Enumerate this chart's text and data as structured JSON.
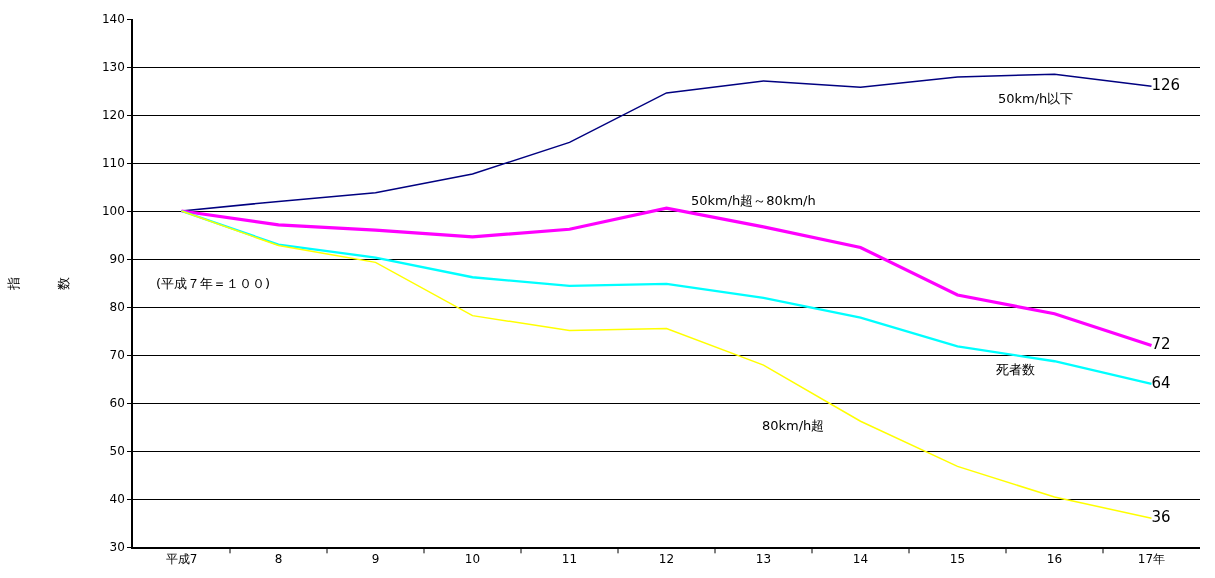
{
  "chart_data": {
    "type": "line",
    "ylabel": "指数",
    "categories": [
      "平成7",
      "8",
      "9",
      "10",
      "11",
      "12",
      "13",
      "14",
      "15",
      "16",
      "17年"
    ],
    "series": [
      {
        "name": "50km/h以下",
        "color": "#000080",
        "values": [
          100,
          102.0,
          103.8,
          107.7,
          114.3,
          124.6,
          127.1,
          125.8,
          127.9,
          128.5,
          126
        ],
        "value_labels": [
          null,
          null,
          null,
          null,
          null,
          null,
          null,
          null,
          null,
          null,
          "126"
        ]
      },
      {
        "name": "50km/h超～80km/h",
        "color": "#ff00ff",
        "values": [
          100,
          97.1,
          96.0,
          94.6,
          96.2,
          100.6,
          96.7,
          92.4,
          82.5,
          78.6,
          72
        ],
        "value_labels": [
          null,
          null,
          null,
          null,
          null,
          null,
          null,
          null,
          null,
          null,
          "72"
        ]
      },
      {
        "name": "死者数",
        "color": "#00ffff",
        "values": [
          100,
          93.0,
          90.3,
          86.2,
          84.4,
          84.8,
          81.9,
          77.8,
          71.8,
          68.7,
          64
        ],
        "value_labels": [
          null,
          null,
          null,
          null,
          null,
          null,
          null,
          null,
          null,
          null,
          "64"
        ]
      },
      {
        "name": "80km/h超",
        "color": "#ffff00",
        "values": [
          100,
          92.8,
          89.3,
          78.2,
          75.1,
          75.5,
          67.9,
          56.2,
          46.8,
          40.4,
          36
        ],
        "value_labels": [
          null,
          null,
          null,
          null,
          null,
          null,
          null,
          null,
          null,
          null,
          "36"
        ]
      }
    ],
    "ylim": [
      30,
      140
    ],
    "yticks": [
      30,
      40,
      50,
      60,
      70,
      80,
      90,
      100,
      110,
      120,
      130,
      140
    ],
    "grid": "y",
    "legend": false,
    "marker": "none",
    "line_style": "solid",
    "annotations": [
      "(平成７年＝１００)"
    ]
  }
}
